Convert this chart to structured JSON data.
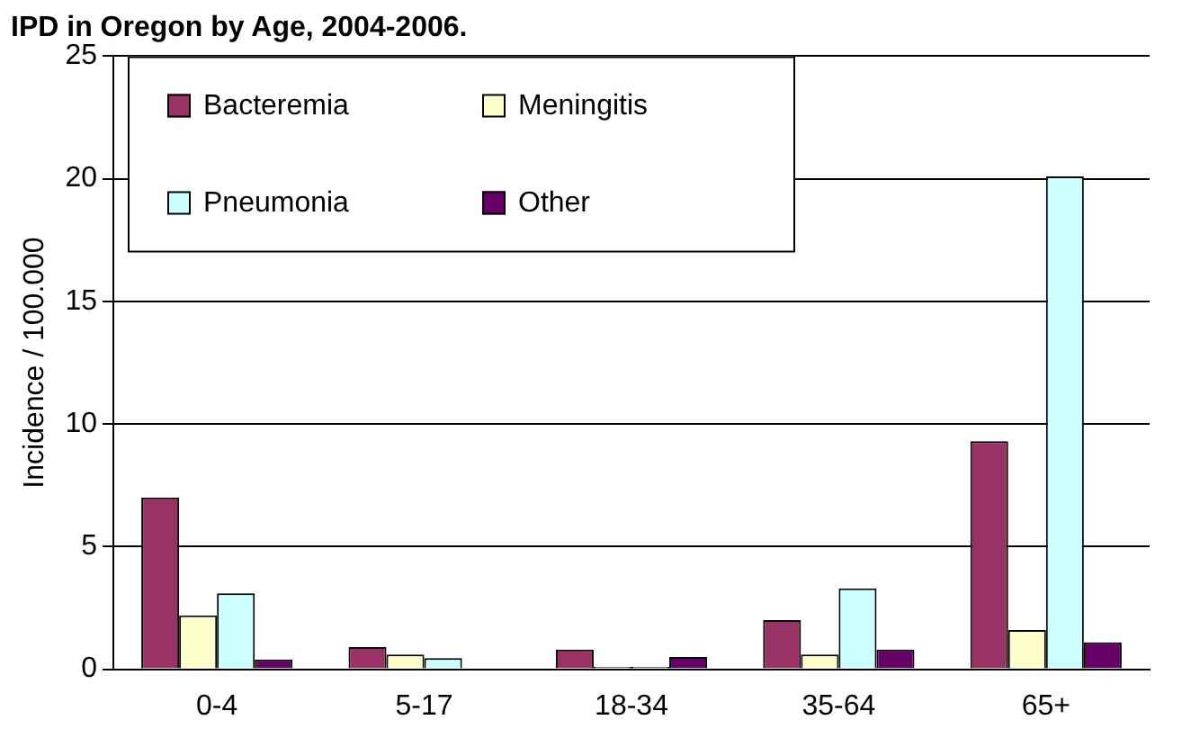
{
  "chart_data": {
    "type": "bar",
    "title": "IPD in Oregon by Age, 2004-2006.",
    "ylabel": "Incidence / 100.000",
    "categories": [
      "0-4",
      "5-17",
      "18-34",
      "35-64",
      "65+"
    ],
    "series": [
      {
        "name": "Bacteremia",
        "color": "#993366",
        "values": [
          7.0,
          0.9,
          0.8,
          2.0,
          9.3
        ]
      },
      {
        "name": "Meningitis",
        "color": "#ffffcc",
        "values": [
          2.2,
          0.6,
          0.1,
          0.6,
          1.6
        ]
      },
      {
        "name": "Pneumonia",
        "color": "#ccffff",
        "values": [
          3.1,
          0.45,
          0.1,
          3.3,
          20.1
        ]
      },
      {
        "name": "Other",
        "color": "#660066",
        "values": [
          0.4,
          0,
          0.5,
          0.8,
          1.1
        ]
      }
    ],
    "ylim": [
      0,
      25
    ],
    "yticks": [
      0,
      5,
      10,
      15,
      20,
      25
    ],
    "grid": "y",
    "legend": "top left"
  }
}
